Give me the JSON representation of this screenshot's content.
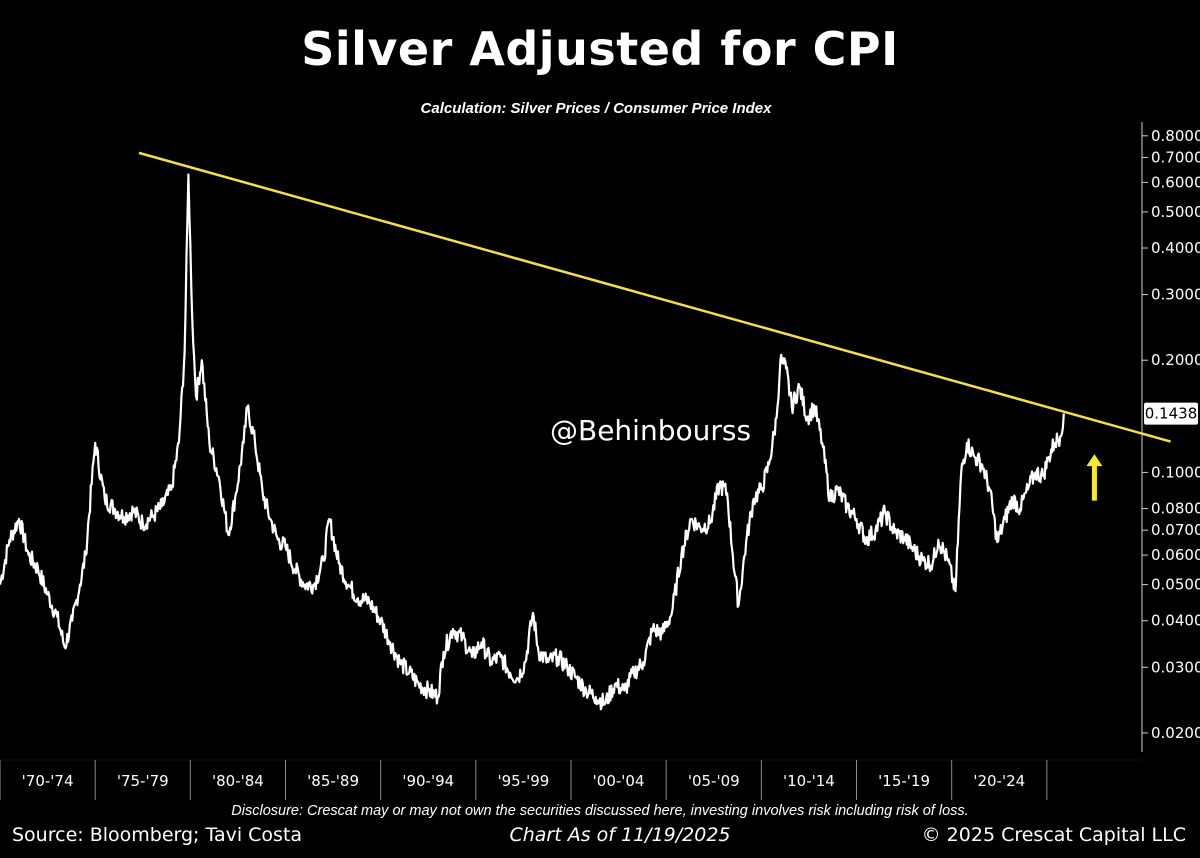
{
  "header": {
    "title": "Silver Adjusted for CPI",
    "subtitle": "Calculation: Silver Prices / Consumer Price Index"
  },
  "watermark": "@Behinbourss",
  "footer": {
    "disclosure": "Disclosure: Crescat may or may not own the securities discussed here, investing involves risk including risk of loss.",
    "source": "Source: Bloomberg; Tavi Costa",
    "as_of": "Chart As of 11/19/2025",
    "copyright": "© 2025 Crescat Capital LLC"
  },
  "colors": {
    "background": "#000000",
    "series": "#ffffff",
    "trendline": "#f2de4e",
    "arrow": "#f6ea2a",
    "axis": "#cfcfcf"
  },
  "chart_data": {
    "type": "line",
    "y_scale": "log",
    "ylim": [
      0.018,
      0.85
    ],
    "xlim": [
      1970.0,
      2030.0
    ],
    "x_tick_labels": [
      "'70-'74",
      "'75-'79",
      "'80-'84",
      "'85-'89",
      "'90-'94",
      "'95-'99",
      "'00-'04",
      "'05-'09",
      "'10-'14",
      "'15-'19",
      "'20-'24"
    ],
    "x_tick_periods": [
      [
        1970,
        1975
      ],
      [
        1975,
        1980
      ],
      [
        1980,
        1985
      ],
      [
        1985,
        1990
      ],
      [
        1990,
        1995
      ],
      [
        1995,
        2000
      ],
      [
        2000,
        2005
      ],
      [
        2005,
        2010
      ],
      [
        2010,
        2015
      ],
      [
        2015,
        2020
      ],
      [
        2020,
        2025
      ]
    ],
    "y_ticks": [
      0.8,
      0.7,
      0.6,
      0.5,
      0.4,
      0.3,
      0.2,
      0.1,
      0.08,
      0.07,
      0.06,
      0.05,
      0.04,
      0.03,
      0.02
    ],
    "y_tick_labels": [
      "0.8000",
      "0.7000",
      "0.6000",
      "0.5000",
      "0.4000",
      "0.3000",
      "0.2000",
      "0.1000",
      "0.0800",
      "0.0700",
      "0.0600",
      "0.0500",
      "0.0400",
      "0.0300",
      "0.0200"
    ],
    "last_value": 0.1438,
    "last_value_label": "0.1438",
    "series": [
      {
        "x": [
          1970.0,
          1970.5,
          1971.0,
          1971.5,
          1972.0,
          1972.5,
          1973.0,
          1973.4,
          1973.8,
          1974.2,
          1974.5,
          1975.0,
          1975.5,
          1976.0,
          1976.5,
          1977.0,
          1977.5,
          1978.0,
          1978.5,
          1979.0,
          1979.4,
          1979.7,
          1979.9,
          1980.1,
          1980.3,
          1980.6,
          1981.0,
          1981.5,
          1982.0,
          1982.4,
          1982.8,
          1983.0,
          1983.4,
          1983.8,
          1984.2,
          1984.6,
          1985.0,
          1985.5,
          1986.0,
          1986.5,
          1987.0,
          1987.3,
          1987.8,
          1988.3,
          1988.8,
          1989.4,
          1990.0,
          1990.5,
          1991.0,
          1991.5,
          1992.0,
          1992.5,
          1993.0,
          1993.3,
          1993.8,
          1994.3,
          1994.8,
          1995.3,
          1995.8,
          1996.3,
          1996.8,
          1997.2,
          1997.6,
          1998.0,
          1998.3,
          1998.8,
          1999.3,
          1999.8,
          2000.3,
          2000.8,
          2001.3,
          2001.8,
          2002.3,
          2002.8,
          2003.3,
          2003.8,
          2004.3,
          2004.8,
          2005.3,
          2005.8,
          2006.3,
          2006.8,
          2007.3,
          2007.8,
          2008.2,
          2008.5,
          2008.8,
          2009.2,
          2009.6,
          2010.0,
          2010.4,
          2010.8,
          2011.0,
          2011.3,
          2011.6,
          2012.0,
          2012.4,
          2012.8,
          2013.2,
          2013.6,
          2014.0,
          2014.5,
          2015.0,
          2015.5,
          2016.0,
          2016.5,
          2017.0,
          2017.5,
          2018.0,
          2018.5,
          2019.0,
          2019.3,
          2019.8,
          2020.2,
          2020.5,
          2020.8,
          2021.2,
          2021.6,
          2022.0,
          2022.4,
          2022.8,
          2023.2,
          2023.6,
          2024.0,
          2024.4,
          2024.8,
          2025.1,
          2025.4,
          2025.7,
          2025.89
        ],
        "values": [
          0.05,
          0.066,
          0.075,
          0.06,
          0.055,
          0.047,
          0.041,
          0.034,
          0.04,
          0.05,
          0.06,
          0.12,
          0.085,
          0.08,
          0.076,
          0.079,
          0.073,
          0.076,
          0.081,
          0.09,
          0.12,
          0.21,
          0.63,
          0.26,
          0.16,
          0.2,
          0.12,
          0.097,
          0.068,
          0.088,
          0.12,
          0.15,
          0.12,
          0.088,
          0.075,
          0.066,
          0.063,
          0.055,
          0.05,
          0.05,
          0.058,
          0.075,
          0.057,
          0.05,
          0.046,
          0.045,
          0.04,
          0.035,
          0.031,
          0.029,
          0.027,
          0.026,
          0.025,
          0.033,
          0.038,
          0.036,
          0.032,
          0.035,
          0.031,
          0.032,
          0.029,
          0.028,
          0.031,
          0.042,
          0.033,
          0.031,
          0.032,
          0.03,
          0.028,
          0.026,
          0.025,
          0.024,
          0.027,
          0.026,
          0.029,
          0.031,
          0.038,
          0.037,
          0.042,
          0.06,
          0.075,
          0.071,
          0.073,
          0.093,
          0.088,
          0.06,
          0.044,
          0.065,
          0.085,
          0.09,
          0.105,
          0.14,
          0.2,
          0.19,
          0.15,
          0.17,
          0.14,
          0.15,
          0.12,
          0.085,
          0.09,
          0.081,
          0.075,
          0.066,
          0.07,
          0.078,
          0.069,
          0.067,
          0.062,
          0.058,
          0.057,
          0.066,
          0.058,
          0.048,
          0.1,
          0.12,
          0.11,
          0.105,
          0.09,
          0.065,
          0.075,
          0.085,
          0.08,
          0.09,
          0.1,
          0.098,
          0.11,
          0.12,
          0.125,
          0.1438
        ]
      }
    ],
    "trendline": {
      "x": [
        1977.3,
        2031.5
      ],
      "values": [
        0.72,
        0.121
      ]
    },
    "arrow": {
      "x": 2027.5,
      "from_value": 0.084,
      "to_value": 0.112
    }
  }
}
